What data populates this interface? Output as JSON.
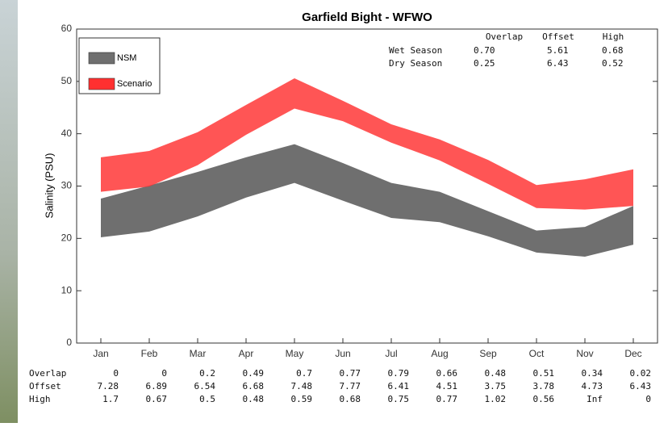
{
  "chart_data": {
    "type": "band",
    "title": "Garfield Bight - WFWO",
    "ylabel": "Salinity (PSU)",
    "categories": [
      "Jan",
      "Feb",
      "Mar",
      "Apr",
      "May",
      "Jun",
      "Jul",
      "Aug",
      "Sep",
      "Oct",
      "Nov",
      "Dec"
    ],
    "ylim": [
      0,
      60
    ],
    "yticks": [
      0,
      10,
      20,
      30,
      40,
      50,
      60
    ],
    "legend": "upper left",
    "series": [
      {
        "name": "NSM",
        "color": "#6f6f6f",
        "low": [
          20.2,
          21.3,
          24.2,
          27.8,
          30.6,
          27.2,
          23.9,
          23.1,
          20.4,
          17.3,
          16.5,
          18.8
        ],
        "high": [
          27.6,
          30.1,
          32.7,
          35.5,
          38.0,
          34.4,
          30.6,
          28.9,
          25.2,
          21.5,
          22.2,
          26.2
        ]
      },
      {
        "name": "Scenario",
        "color": "#ff3030",
        "low": [
          28.9,
          29.9,
          34.0,
          39.8,
          44.8,
          42.4,
          38.3,
          34.9,
          30.4,
          25.8,
          25.5,
          26.2
        ],
        "high": [
          35.5,
          36.7,
          40.3,
          45.5,
          50.6,
          46.3,
          41.8,
          38.9,
          35.0,
          30.2,
          31.3,
          33.2
        ]
      }
    ]
  },
  "summary_table": {
    "columns": [
      "Overlap",
      "Offset",
      "High"
    ],
    "rows": [
      {
        "label": "Wet Season",
        "values": [
          "0.70",
          "5.61",
          "0.68"
        ]
      },
      {
        "label": "Dry Season",
        "values": [
          "0.25",
          "6.43",
          "0.52"
        ]
      }
    ]
  },
  "metrics_table": {
    "rows": [
      {
        "label": "Overlap",
        "values": [
          "0",
          "0",
          "0.2",
          "0.49",
          "0.7",
          "0.77",
          "0.79",
          "0.66",
          "0.48",
          "0.51",
          "0.34",
          "0.02"
        ]
      },
      {
        "label": "Offset",
        "values": [
          "7.28",
          "6.89",
          "6.54",
          "6.68",
          "7.48",
          "7.77",
          "6.41",
          "4.51",
          "3.75",
          "3.78",
          "4.73",
          "6.43"
        ]
      },
      {
        "label": "High",
        "values": [
          "1.7",
          "0.67",
          "0.5",
          "0.48",
          "0.59",
          "0.68",
          "0.75",
          "0.77",
          "1.02",
          "0.56",
          "Inf",
          "0"
        ]
      }
    ]
  }
}
